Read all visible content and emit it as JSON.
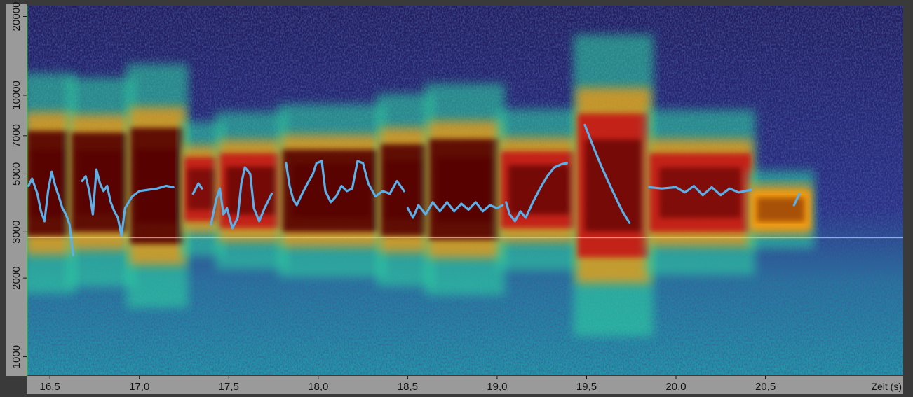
{
  "chart_data": {
    "type": "spectrogram",
    "title": "",
    "xlabel": "Zeit (s)",
    "ylabel": "",
    "xlim": [
      16.37,
      21.27
    ],
    "ylim": [
      850,
      22000
    ],
    "y_scale": "log",
    "x_ticks": [
      16.5,
      17.0,
      17.5,
      18.0,
      18.5,
      19.0,
      19.5,
      20.0,
      20.5
    ],
    "x_tick_labels": [
      "16,5",
      "17,0",
      "17,5",
      "18,0",
      "18,5",
      "19,0",
      "19,5",
      "20,0",
      "20,5"
    ],
    "y_ticks": [
      1000,
      2000,
      3000,
      5000,
      7000,
      10000,
      20000
    ],
    "y_tick_labels": [
      "1000",
      "2000",
      "3000",
      "5000",
      "7000",
      "10000",
      "20000"
    ],
    "colormap": [
      "#1e1648",
      "#2f3296",
      "#1f8fb5",
      "#2fd8a2",
      "#ddee3a",
      "#f59a10",
      "#c41812",
      "#560305"
    ],
    "pitch_line_color": "#5ab0ea",
    "reference_line_y": 2850,
    "energy_bands": [
      {
        "x": [
          16.37,
          16.62
        ],
        "y": [
          2900,
          7300
        ],
        "intensity": 0.9
      },
      {
        "x": [
          16.62,
          16.95
        ],
        "y": [
          3000,
          7200
        ],
        "intensity": 0.88
      },
      {
        "x": [
          16.95,
          17.25
        ],
        "y": [
          2700,
          7500
        ],
        "intensity": 1.0
      },
      {
        "x": [
          17.25,
          17.45
        ],
        "y": [
          3300,
          5800
        ],
        "intensity": 0.72
      },
      {
        "x": [
          17.45,
          17.8
        ],
        "y": [
          3100,
          6000
        ],
        "intensity": 0.85
      },
      {
        "x": [
          17.8,
          18.35
        ],
        "y": [
          3000,
          6200
        ],
        "intensity": 0.92
      },
      {
        "x": [
          18.35,
          18.62
        ],
        "y": [
          2900,
          6500
        ],
        "intensity": 0.9
      },
      {
        "x": [
          18.62,
          19.02
        ],
        "y": [
          2800,
          6800
        ],
        "intensity": 0.97
      },
      {
        "x": [
          19.02,
          19.45
        ],
        "y": [
          3100,
          6100
        ],
        "intensity": 0.85
      },
      {
        "x": [
          19.45,
          19.85
        ],
        "y": [
          2400,
          8500
        ],
        "intensity": 0.82
      },
      {
        "x": [
          19.85,
          20.42
        ],
        "y": [
          3000,
          6000
        ],
        "intensity": 0.72
      },
      {
        "x": [
          20.42,
          20.75
        ],
        "y": [
          3100,
          4300
        ],
        "intensity": 0.55
      }
    ],
    "pitch_segments": [
      [
        [
          16.38,
          4500
        ],
        [
          16.4,
          4800
        ],
        [
          16.43,
          4200
        ],
        [
          16.45,
          3600
        ],
        [
          16.47,
          3300
        ],
        [
          16.49,
          4300
        ],
        [
          16.51,
          5100
        ],
        [
          16.53,
          4500
        ],
        [
          16.55,
          4100
        ],
        [
          16.57,
          3700
        ],
        [
          16.59,
          3500
        ],
        [
          16.61,
          3200
        ],
        [
          16.63,
          2450
        ]
      ],
      [
        [
          16.68,
          4700
        ],
        [
          16.7,
          4900
        ],
        [
          16.72,
          4300
        ],
        [
          16.74,
          3500
        ],
        [
          16.76,
          5200
        ],
        [
          16.78,
          4600
        ],
        [
          16.8,
          4300
        ],
        [
          16.82,
          4500
        ],
        [
          16.84,
          3900
        ],
        [
          16.86,
          3600
        ],
        [
          16.88,
          3400
        ],
        [
          16.9,
          2900
        ],
        [
          16.92,
          3700
        ],
        [
          16.96,
          4100
        ],
        [
          17.0,
          4300
        ],
        [
          17.05,
          4350
        ],
        [
          17.1,
          4400
        ],
        [
          17.15,
          4500
        ],
        [
          17.19,
          4450
        ]
      ],
      [
        [
          17.3,
          4200
        ],
        [
          17.33,
          4600
        ],
        [
          17.35,
          4400
        ]
      ],
      [
        [
          17.4,
          3200
        ],
        [
          17.43,
          4000
        ],
        [
          17.45,
          4400
        ],
        [
          17.47,
          3500
        ],
        [
          17.49,
          3700
        ],
        [
          17.52,
          3100
        ],
        [
          17.55,
          3400
        ],
        [
          17.57,
          4600
        ],
        [
          17.59,
          5300
        ],
        [
          17.62,
          5000
        ],
        [
          17.64,
          3700
        ],
        [
          17.67,
          3300
        ],
        [
          17.7,
          3700
        ],
        [
          17.74,
          4200
        ]
      ],
      [
        [
          17.82,
          5500
        ],
        [
          17.84,
          4500
        ],
        [
          17.86,
          4000
        ],
        [
          17.88,
          3800
        ],
        [
          17.91,
          4200
        ],
        [
          17.94,
          4600
        ],
        [
          17.97,
          5000
        ],
        [
          17.99,
          5500
        ],
        [
          18.02,
          5600
        ],
        [
          18.04,
          4300
        ],
        [
          18.07,
          3900
        ],
        [
          18.1,
          4100
        ],
        [
          18.13,
          4500
        ],
        [
          18.16,
          4300
        ],
        [
          18.19,
          4400
        ],
        [
          18.22,
          5600
        ],
        [
          18.25,
          5500
        ],
        [
          18.28,
          4600
        ],
        [
          18.32,
          4100
        ],
        [
          18.36,
          4300
        ],
        [
          18.4,
          4200
        ],
        [
          18.44,
          4700
        ],
        [
          18.48,
          4300
        ]
      ],
      [
        [
          18.5,
          3700
        ],
        [
          18.53,
          3400
        ],
        [
          18.56,
          3800
        ],
        [
          18.6,
          3500
        ],
        [
          18.64,
          3900
        ],
        [
          18.68,
          3600
        ],
        [
          18.72,
          3900
        ],
        [
          18.76,
          3600
        ],
        [
          18.8,
          3850
        ],
        [
          18.84,
          3650
        ],
        [
          18.88,
          3900
        ],
        [
          18.92,
          3600
        ],
        [
          18.96,
          3800
        ],
        [
          19.0,
          3700
        ],
        [
          19.03,
          3800
        ]
      ],
      [
        [
          19.05,
          3900
        ],
        [
          19.07,
          3500
        ],
        [
          19.1,
          3300
        ],
        [
          19.13,
          3600
        ],
        [
          19.16,
          3400
        ],
        [
          19.2,
          3900
        ],
        [
          19.24,
          4400
        ],
        [
          19.28,
          4900
        ],
        [
          19.32,
          5300
        ],
        [
          19.36,
          5450
        ],
        [
          19.39,
          5500
        ]
      ],
      [
        [
          19.49,
          7700
        ],
        [
          19.54,
          6300
        ],
        [
          19.58,
          5400
        ],
        [
          19.62,
          4700
        ],
        [
          19.66,
          4100
        ],
        [
          19.7,
          3600
        ],
        [
          19.74,
          3250
        ]
      ],
      [
        [
          19.85,
          4450
        ],
        [
          19.92,
          4400
        ],
        [
          20.0,
          4450
        ],
        [
          20.05,
          4250
        ],
        [
          20.1,
          4500
        ],
        [
          20.15,
          4150
        ],
        [
          20.2,
          4450
        ],
        [
          20.25,
          4150
        ],
        [
          20.3,
          4400
        ],
        [
          20.35,
          4250
        ],
        [
          20.42,
          4350
        ]
      ],
      [
        [
          20.66,
          3800
        ],
        [
          20.69,
          4200
        ]
      ]
    ]
  }
}
